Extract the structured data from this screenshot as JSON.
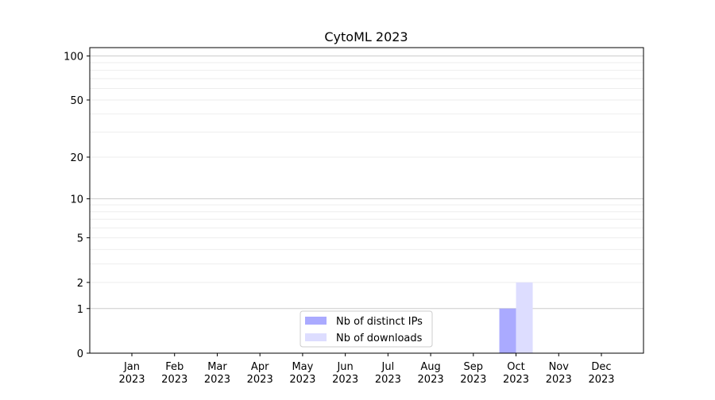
{
  "chart_data": {
    "type": "bar",
    "title": "CytoML 2023",
    "xlabel": "",
    "ylabel": "",
    "yscale": "log(1+y)",
    "ylim": [
      0,
      114
    ],
    "yticks": [
      0,
      1,
      2,
      5,
      10,
      20,
      50,
      100
    ],
    "grid": true,
    "legend_position": "bottom-center",
    "categories": [
      "Jan\n2023",
      "Feb\n2023",
      "Mar\n2023",
      "Apr\n2023",
      "May\n2023",
      "Jun\n2023",
      "Jul\n2023",
      "Aug\n2023",
      "Sep\n2023",
      "Oct\n2023",
      "Nov\n2023",
      "Dec\n2023"
    ],
    "series": [
      {
        "name": "Nb of distinct IPs",
        "color": "#aaaaff",
        "values": [
          0,
          0,
          0,
          0,
          0,
          0,
          0,
          0,
          0,
          1,
          0,
          0
        ]
      },
      {
        "name": "Nb of downloads",
        "color": "#ddddff",
        "values": [
          0,
          0,
          0,
          0,
          0,
          0,
          0,
          0,
          0,
          2,
          0,
          0
        ]
      }
    ]
  }
}
